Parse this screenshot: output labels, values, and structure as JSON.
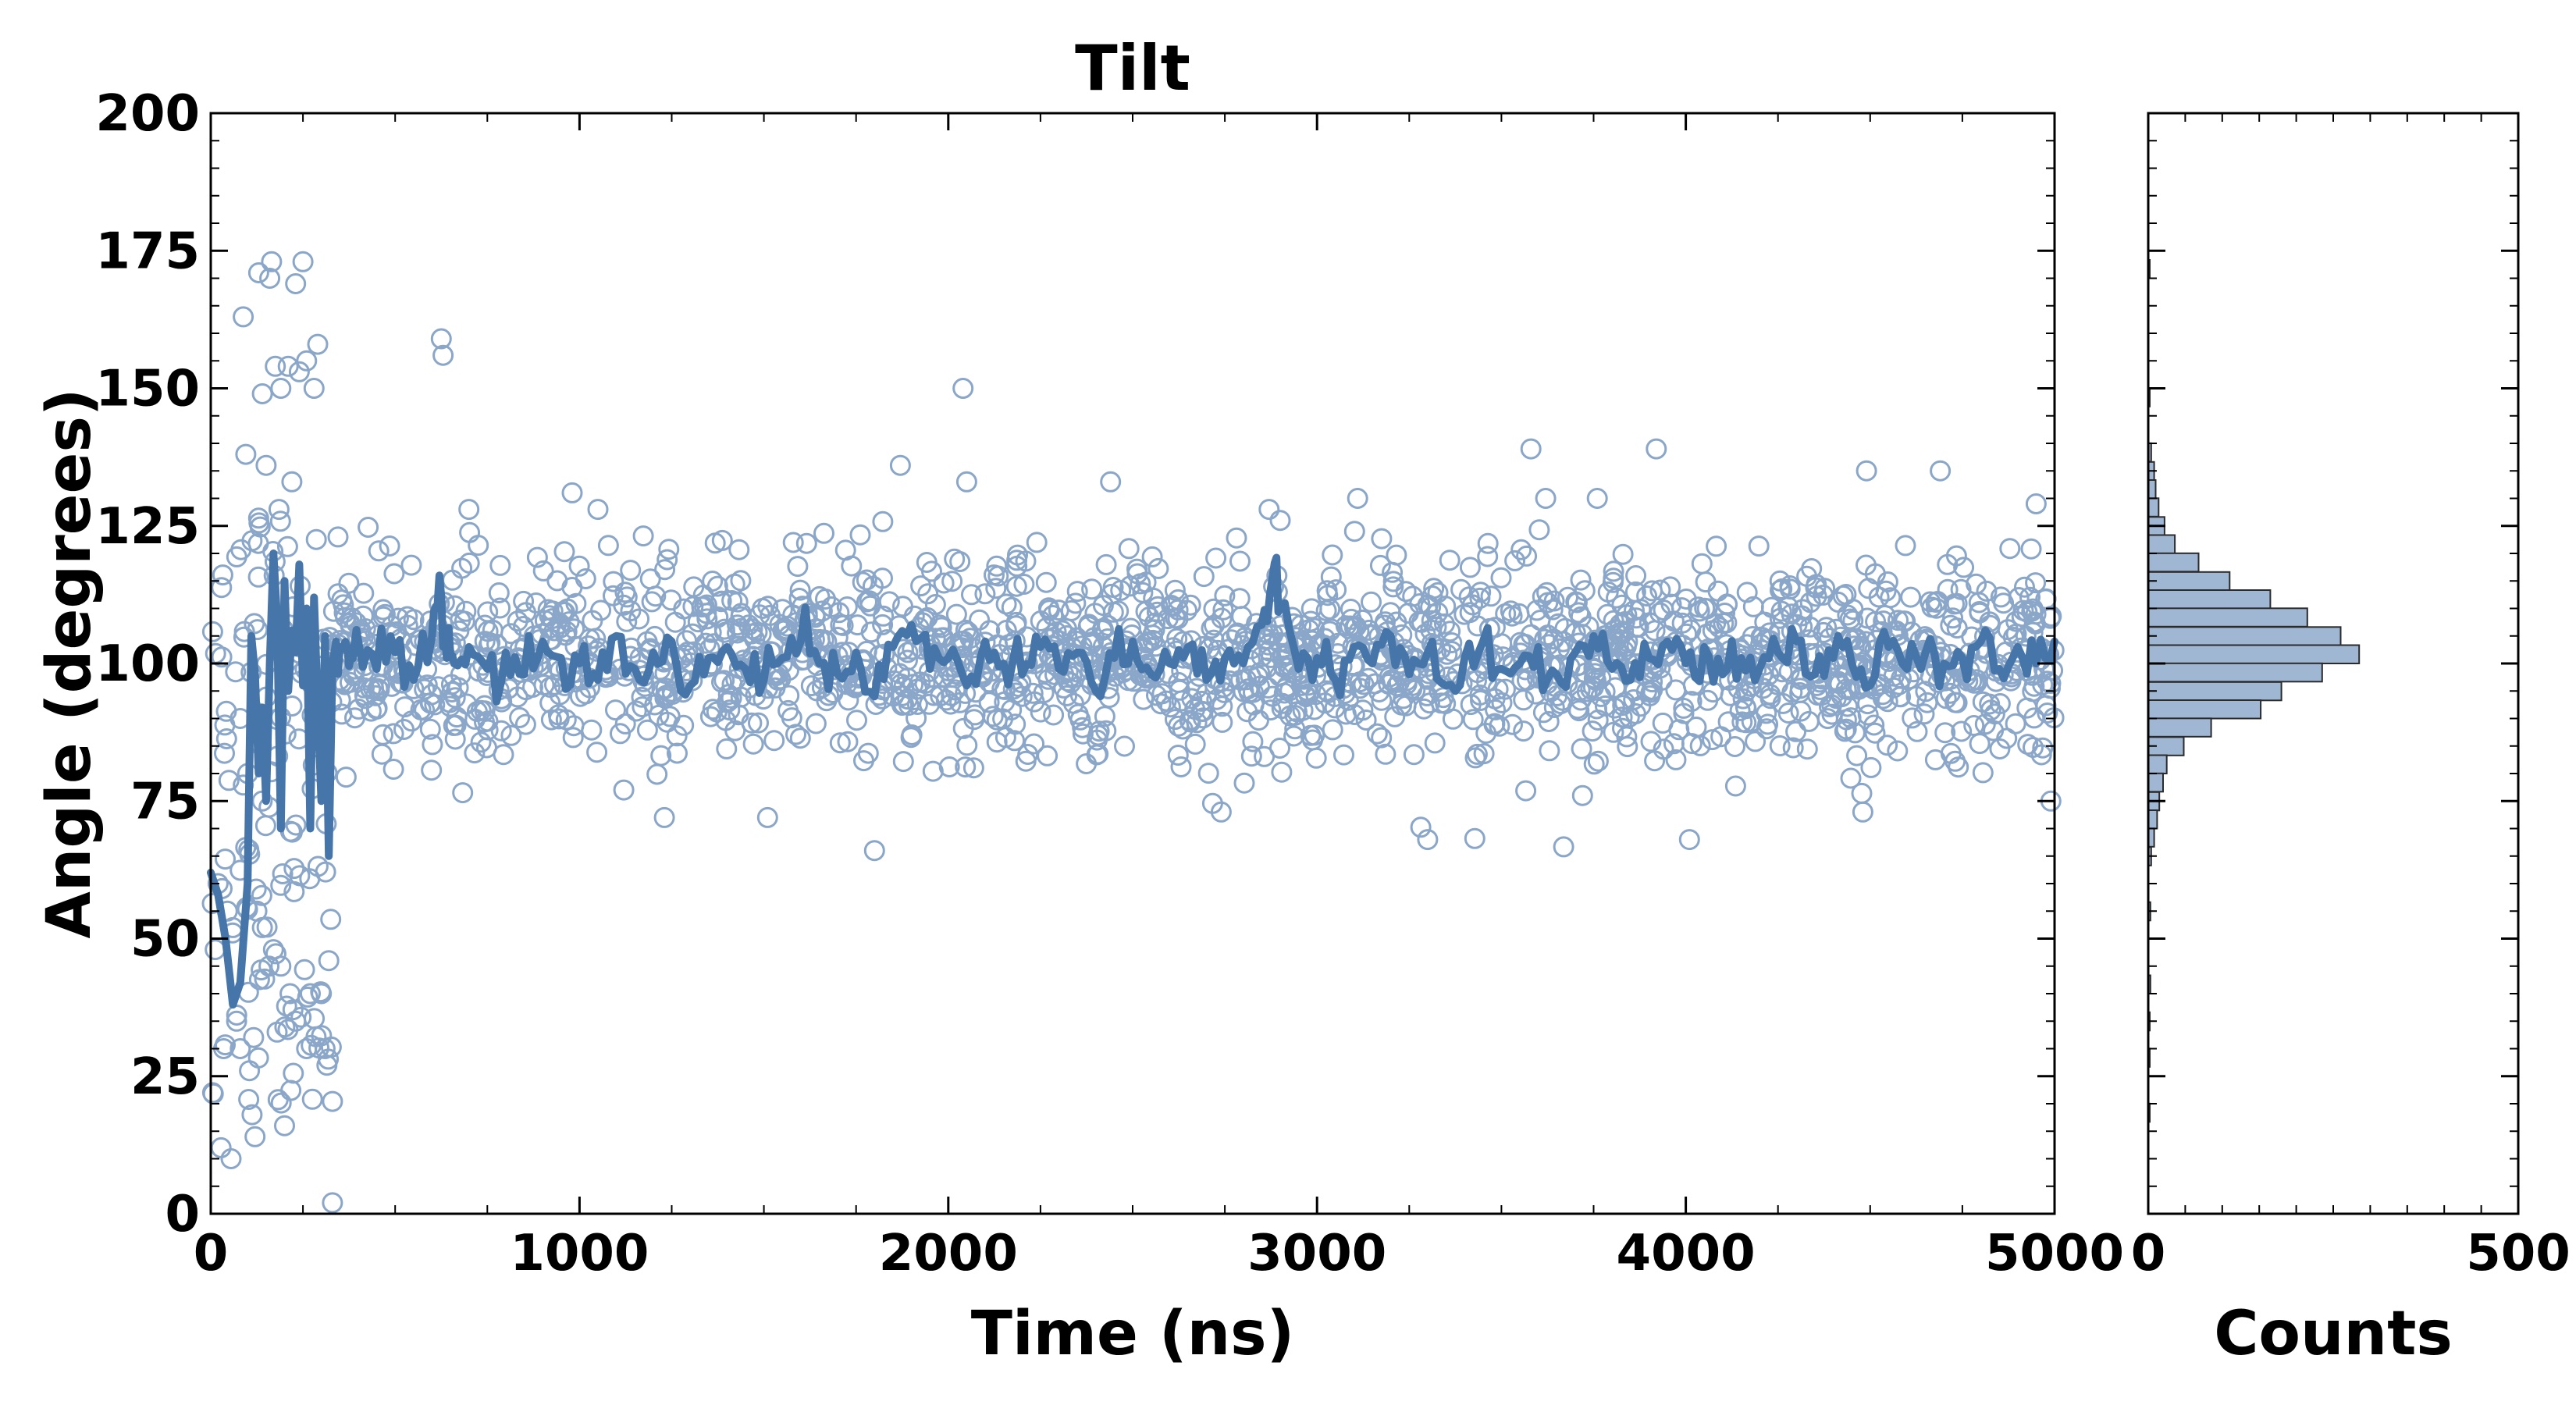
{
  "colors": {
    "accent": "#4575a9",
    "scatter": "#8aa6c8",
    "hist_fill": "#9fb7d3",
    "hist_edge": "#2b2b2b",
    "axis": "#000000"
  },
  "chart_data": [
    {
      "type": "scatter",
      "title": "Tilt",
      "xlabel": "Time (ns)",
      "ylabel": "Angle (degrees)",
      "xlim": [
        0,
        5000
      ],
      "ylim": [
        0,
        200
      ],
      "xticks": [
        "0",
        "1000",
        "2000",
        "3000",
        "4000",
        "5000"
      ],
      "yticks": [
        "0",
        "25",
        "50",
        "75",
        "100",
        "125",
        "150",
        "175",
        "200"
      ],
      "grid": false,
      "series": [
        {
          "style": "scatter",
          "marker": "hollow-circle",
          "note": "raw frames, ~2000 points: large spread (0-175) during first ~330 ns, then clustered 95-110 with spread ~68-140",
          "points": [
            [
              5,
              22
            ],
            [
              12,
              48
            ],
            [
              20,
              60
            ],
            [
              28,
              12
            ],
            [
              35,
              30
            ],
            [
              45,
              55
            ],
            [
              55,
              10
            ],
            [
              60,
              52
            ],
            [
              70,
              35
            ],
            [
              80,
              30
            ],
            [
              88,
              163
            ],
            [
              95,
              138
            ],
            [
              105,
              26
            ],
            [
              112,
              18
            ],
            [
              120,
              14
            ],
            [
              130,
              171
            ],
            [
              140,
              149
            ],
            [
              150,
              136
            ],
            [
              160,
              170
            ],
            [
              165,
              173
            ],
            [
              175,
              154
            ],
            [
              185,
              128
            ],
            [
              190,
              150
            ],
            [
              200,
              16
            ],
            [
              210,
              154
            ],
            [
              220,
              133
            ],
            [
              230,
              169
            ],
            [
              240,
              153
            ],
            [
              250,
              173
            ],
            [
              260,
              155
            ],
            [
              270,
              40
            ],
            [
              280,
              150
            ],
            [
              290,
              158
            ],
            [
              300,
              40
            ],
            [
              310,
              30
            ],
            [
              315,
              27
            ],
            [
              320,
              46
            ],
            [
              330,
              2
            ],
            [
              345,
              123
            ],
            [
              260,
              30
            ],
            [
              230,
              35
            ],
            [
              215,
              40
            ],
            [
              190,
              45
            ],
            [
              180,
              33
            ],
            [
              170,
              48
            ],
            [
              158,
              45
            ],
            [
              140,
              52
            ],
            [
              125,
              55
            ],
            [
              100,
              80
            ],
            [
              80,
              90
            ],
            [
              625,
              159
            ],
            [
              630,
              156
            ],
            [
              700,
              128
            ],
            [
              980,
              131
            ],
            [
              1050,
              128
            ],
            [
              1120,
              77
            ],
            [
              1230,
              72
            ],
            [
              1510,
              72
            ],
            [
              1800,
              66
            ],
            [
              1870,
              136
            ],
            [
              2040,
              150
            ],
            [
              2050,
              133
            ],
            [
              2240,
              122
            ],
            [
              2440,
              133
            ],
            [
              2740,
              73
            ],
            [
              2870,
              128
            ],
            [
              2900,
              126
            ],
            [
              3110,
              130
            ],
            [
              3300,
              68
            ],
            [
              3580,
              139
            ],
            [
              3620,
              130
            ],
            [
              3720,
              76
            ],
            [
              3760,
              130
            ],
            [
              3920,
              139
            ],
            [
              4010,
              68
            ],
            [
              4480,
              73
            ],
            [
              4490,
              135
            ],
            [
              4690,
              135
            ],
            [
              4950,
              129
            ],
            [
              4990,
              75
            ]
          ]
        },
        {
          "style": "line",
          "name": "",
          "note": "running average",
          "x": [
            0,
            20,
            40,
            60,
            80,
            100,
            110,
            120,
            130,
            140,
            150,
            160,
            170,
            180,
            190,
            200,
            210,
            220,
            230,
            240,
            250,
            260,
            270,
            280,
            290,
            300,
            310,
            320,
            330,
            340,
            360,
            380,
            400,
            450,
            500,
            550,
            600,
            620,
            640,
            660,
            700,
            750,
            800,
            850,
            900,
            950,
            1000,
            1050,
            1100,
            1150,
            1200,
            1250,
            1300,
            1350,
            1400,
            1450,
            1500,
            1550,
            1600,
            1650,
            1700,
            1750,
            1800,
            1850,
            1900,
            1950,
            2000,
            2050,
            2100,
            2150,
            2200,
            2250,
            2300,
            2350,
            2400,
            2450,
            2500,
            2550,
            2600,
            2650,
            2700,
            2750,
            2800,
            2850,
            2880,
            2900,
            2950,
            3000,
            3050,
            3100,
            3150,
            3200,
            3250,
            3300,
            3350,
            3400,
            3450,
            3500,
            3550,
            3600,
            3650,
            3700,
            3750,
            3800,
            3850,
            3900,
            3950,
            4000,
            4050,
            4100,
            4150,
            4200,
            4250,
            4300,
            4350,
            4400,
            4450,
            4500,
            4550,
            4600,
            4650,
            4700,
            4750,
            4800,
            4850,
            4900,
            4950,
            5000
          ],
          "y": [
            62,
            58,
            50,
            38,
            42,
            60,
            105,
            98,
            80,
            92,
            75,
            100,
            120,
            108,
            70,
            115,
            95,
            106,
            102,
            118,
            96,
            110,
            70,
            112,
            92,
            75,
            105,
            65,
            100,
            104,
            103,
            101,
            104,
            99,
            102,
            97,
            105,
            116,
            101,
            100,
            103,
            99,
            102,
            98,
            104,
            101,
            100,
            97,
            105,
            99,
            102,
            104,
            96,
            101,
            103,
            99,
            97,
            101,
            104,
            100,
            98,
            102,
            94,
            103,
            107,
            99,
            101,
            96,
            104,
            100,
            98,
            103,
            99,
            102,
            95,
            101,
            104,
            98,
            100,
            103,
            97,
            101,
            100,
            107,
            116,
            110,
            99,
            101,
            97,
            103,
            100,
            105,
            98,
            102,
            96,
            101,
            104,
            99,
            100,
            103,
            98,
            102,
            105,
            99,
            97,
            101,
            104,
            100,
            103,
            98,
            101,
            99,
            102,
            104,
            98,
            101,
            100,
            96,
            103,
            99,
            102,
            100,
            101,
            104,
            99,
            103,
            100,
            104
          ]
        }
      ]
    },
    {
      "type": "bar",
      "orientation": "horizontal",
      "title": "",
      "xlabel": "Counts",
      "ylabel": "",
      "xlim": [
        0,
        500
      ],
      "ylim": [
        0,
        200
      ],
      "xticks": [
        "0",
        "500"
      ],
      "bin_width": 3.33,
      "bins": [
        {
          "y": 170.0,
          "count": 2
        },
        {
          "y": 146.7,
          "count": 2
        },
        {
          "y": 136.7,
          "count": 4
        },
        {
          "y": 133.3,
          "count": 8
        },
        {
          "y": 130.0,
          "count": 10
        },
        {
          "y": 126.7,
          "count": 14
        },
        {
          "y": 123.3,
          "count": 22
        },
        {
          "y": 120.0,
          "count": 36
        },
        {
          "y": 116.7,
          "count": 68
        },
        {
          "y": 113.3,
          "count": 110
        },
        {
          "y": 110.0,
          "count": 165
        },
        {
          "y": 106.7,
          "count": 215
        },
        {
          "y": 103.3,
          "count": 260
        },
        {
          "y": 100.0,
          "count": 285
        },
        {
          "y": 96.7,
          "count": 235
        },
        {
          "y": 93.3,
          "count": 180
        },
        {
          "y": 90.0,
          "count": 152
        },
        {
          "y": 86.7,
          "count": 85
        },
        {
          "y": 83.3,
          "count": 48
        },
        {
          "y": 80.0,
          "count": 25
        },
        {
          "y": 76.7,
          "count": 20
        },
        {
          "y": 73.3,
          "count": 15
        },
        {
          "y": 70.0,
          "count": 12
        },
        {
          "y": 66.7,
          "count": 8
        },
        {
          "y": 63.3,
          "count": 4
        },
        {
          "y": 53.3,
          "count": 3
        },
        {
          "y": 40.0,
          "count": 3
        },
        {
          "y": 33.3,
          "count": 2
        },
        {
          "y": 26.7,
          "count": 2
        },
        {
          "y": 16.7,
          "count": 2
        }
      ]
    }
  ]
}
